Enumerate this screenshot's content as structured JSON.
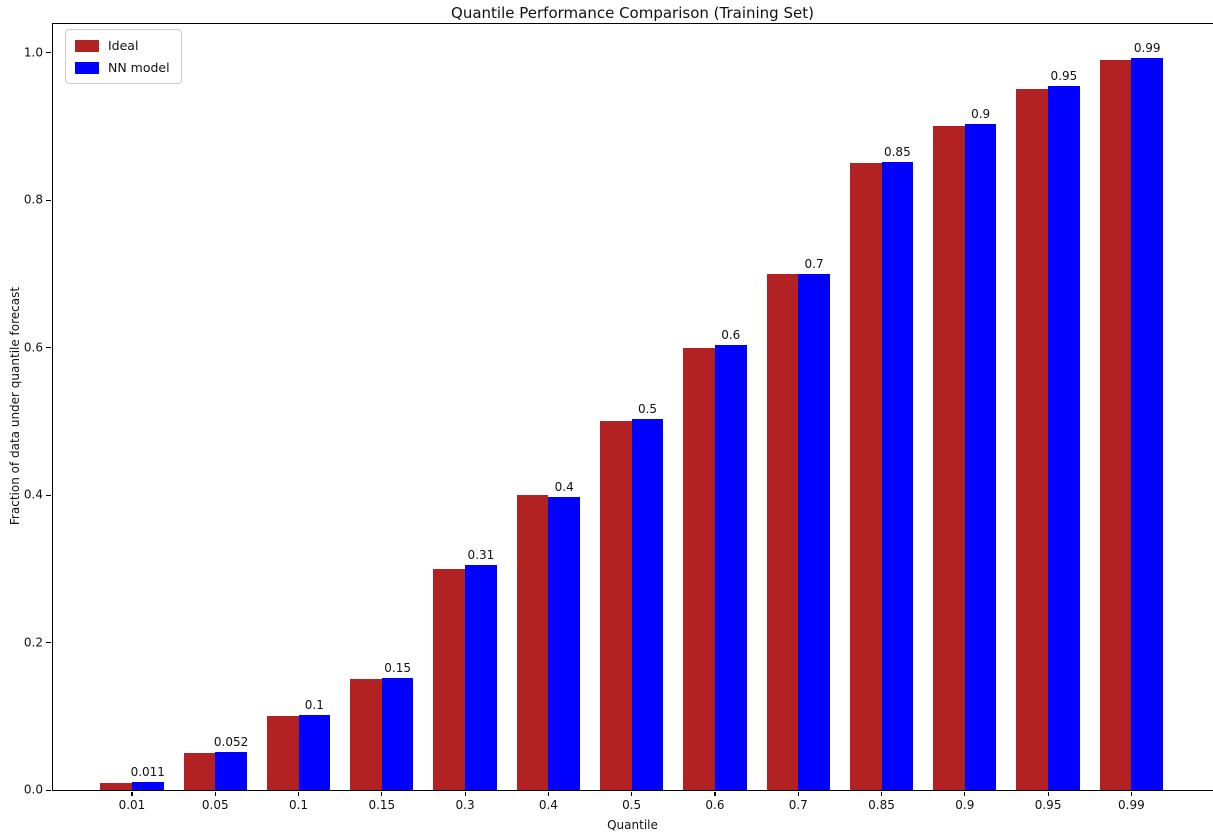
{
  "chart_data": {
    "type": "bar",
    "title": "Quantile Performance Comparison (Training Set)",
    "xlabel": "Quantile",
    "ylabel": "Fraction of data under quantile forecast",
    "categories": [
      "0.01",
      "0.05",
      "0.1",
      "0.15",
      "0.3",
      "0.4",
      "0.5",
      "0.6",
      "0.7",
      "0.85",
      "0.9",
      "0.95",
      "0.99"
    ],
    "series": [
      {
        "name": "Ideal",
        "color": "#b22222",
        "values": [
          0.01,
          0.05,
          0.1,
          0.15,
          0.3,
          0.4,
          0.5,
          0.6,
          0.7,
          0.85,
          0.9,
          0.95,
          0.99
        ]
      },
      {
        "name": "NN model",
        "color": "#0000ff",
        "values": [
          0.011,
          0.052,
          0.102,
          0.152,
          0.305,
          0.397,
          0.503,
          0.604,
          0.7,
          0.851,
          0.903,
          0.954,
          0.992
        ],
        "bar_labels": [
          "0.011",
          "0.052",
          "0.1",
          "0.15",
          "0.31",
          "0.4",
          "0.5",
          "0.6",
          "0.7",
          "0.85",
          "0.9",
          "0.95",
          "0.99"
        ]
      }
    ],
    "yticks": [
      0.0,
      0.2,
      0.4,
      0.6,
      0.8,
      1.0
    ],
    "ytick_labels": [
      "0.0",
      "0.2",
      "0.4",
      "0.6",
      "0.8",
      "1.0"
    ],
    "ylim": [
      0,
      1.04
    ],
    "grid": false,
    "legend_position": "upper left",
    "background": "#ffffff"
  }
}
